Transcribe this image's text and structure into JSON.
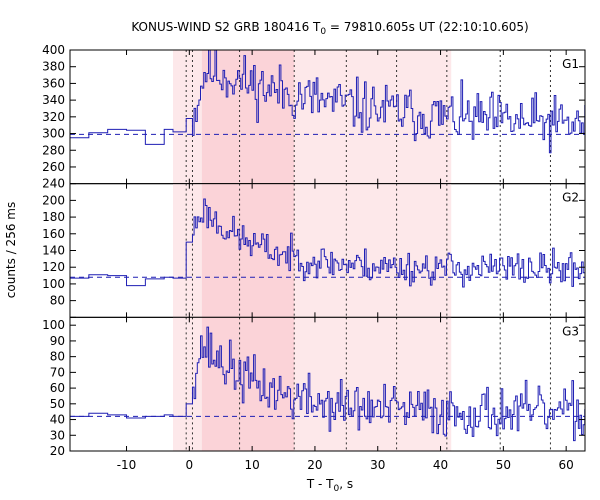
{
  "chart_data": {
    "type": "line",
    "title_main": "KONUS-WIND S2 GRB 180416 T",
    "title_sub": "0",
    "title_rest": " = 79810.605s UT (22:10:10.605)",
    "xlabel_main": "T - T",
    "xlabel_sub": "0",
    "xlabel_rest": ", s",
    "ylabel": "counts / 256 ms",
    "xlim": [
      -19,
      63
    ],
    "x_ticks": [
      -10,
      0,
      10,
      20,
      30,
      40,
      50,
      60
    ],
    "colors": {
      "line": "#1f1fb4",
      "background_band": "#fde8ea",
      "peak_band": "#fbd3d8",
      "marker": "#333333"
    },
    "shaded_intervals": [
      {
        "start": -2.6,
        "end": 41.7,
        "level": "light"
      },
      {
        "start": 2.0,
        "end": 16.7,
        "level": "dark"
      }
    ],
    "vertical_markers": [
      -0.5,
      0.5,
      8.0,
      16.7,
      25.0,
      33.0,
      41.0,
      49.5,
      57.5
    ],
    "panels": [
      {
        "label": "G1",
        "ylim": [
          240,
          400
        ],
        "y_ticks": [
          240,
          260,
          280,
          300,
          320,
          340,
          360,
          380,
          400
        ],
        "background_level": 299,
        "pre_trigger": {
          "x": [
            -19,
            -16,
            -13,
            -10,
            -7,
            -4,
            -2.6,
            -0.5
          ],
          "y": [
            295,
            301,
            305,
            304,
            287,
            305,
            302,
            318
          ]
        },
        "burst": {
          "start": -0.5,
          "peak_time": 2.5,
          "peak": 378,
          "rise_end": 0.5,
          "plateau_level": 318,
          "decay_time": 25.0,
          "base": 304,
          "noise": 16,
          "end": 63,
          "step": 0.256,
          "seed": 11
        }
      },
      {
        "label": "G2",
        "ylim": [
          60,
          220
        ],
        "y_ticks": [
          60,
          80,
          100,
          120,
          140,
          160,
          180,
          200
        ],
        "background_level": 108,
        "pre_trigger": {
          "x": [
            -19,
            -16,
            -13,
            -10,
            -7,
            -4,
            -2.6,
            -0.5
          ],
          "y": [
            107,
            111,
            110,
            98,
            106,
            108,
            107,
            150
          ]
        },
        "burst": {
          "start": -0.5,
          "peak_time": 2.0,
          "peak": 190,
          "rise_end": 0.5,
          "plateau_level": 165,
          "decay_time": 9.0,
          "base": 118,
          "noise": 10,
          "end": 63,
          "step": 0.256,
          "seed": 23
        }
      },
      {
        "label": "G3",
        "ylim": [
          20,
          105
        ],
        "y_ticks": [
          20,
          30,
          40,
          50,
          60,
          70,
          80,
          90,
          100
        ],
        "background_level": 42,
        "pre_trigger": {
          "x": [
            -19,
            -16,
            -13,
            -10,
            -7,
            -4,
            -2.6,
            -0.5
          ],
          "y": [
            42,
            44,
            43,
            41,
            42,
            43,
            42,
            50
          ]
        },
        "burst": {
          "start": -0.5,
          "peak_time": 2.0,
          "peak": 88,
          "rise_end": 0.5,
          "plateau_level": 68,
          "decay_time": 10.0,
          "base": 44,
          "noise": 8,
          "end": 63,
          "step": 0.256,
          "seed": 37
        }
      }
    ]
  }
}
